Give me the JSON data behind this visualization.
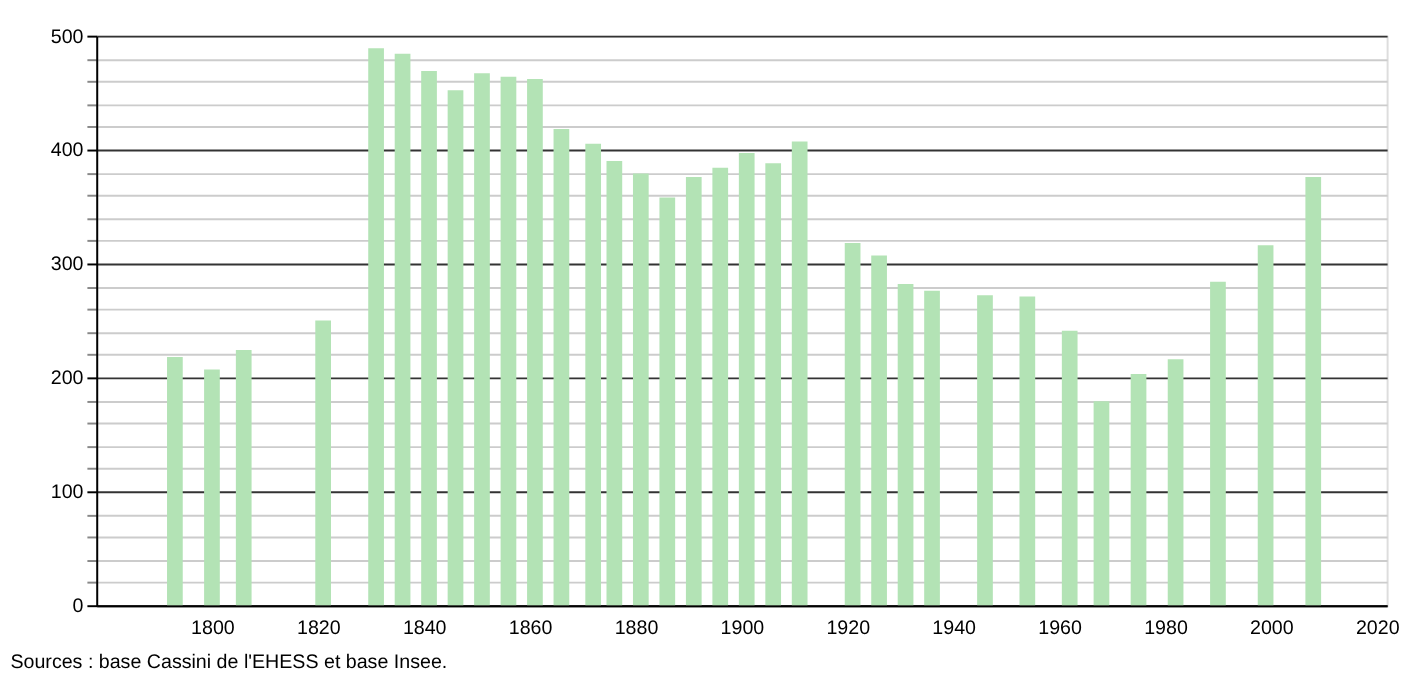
{
  "chart_data": {
    "type": "bar",
    "x": [
      1793,
      1800,
      1806,
      1821,
      1831,
      1836,
      1841,
      1846,
      1851,
      1856,
      1861,
      1866,
      1872,
      1876,
      1881,
      1886,
      1891,
      1896,
      1901,
      1906,
      1911,
      1921,
      1926,
      1931,
      1936,
      1946,
      1954,
      1962,
      1968,
      1975,
      1982,
      1990,
      1999,
      2008
    ],
    "series": [
      {
        "color": "#b3e3b5",
        "values": [
          218,
          207,
          224,
          250,
          489,
          484,
          469,
          452,
          467,
          464,
          462,
          418,
          405,
          390,
          379,
          358,
          376,
          384,
          397,
          388,
          407,
          318,
          307,
          282,
          276,
          272,
          271,
          241,
          179,
          203,
          216,
          284,
          316,
          376
        ]
      }
    ],
    "xlim": [
      1780,
      2020
    ],
    "xticks": [
      1800,
      1820,
      1840,
      1860,
      1880,
      1900,
      1920,
      1940,
      1960,
      1980,
      2000,
      2020
    ],
    "ylim": [
      0,
      500
    ],
    "yticks": [
      0,
      {
        "value": 20,
        "label": null
      },
      {
        "value": 40,
        "label": null
      },
      {
        "value": 60,
        "label": null
      },
      {
        "value": 80,
        "label": null
      },
      100,
      {
        "value": 120,
        "label": null
      },
      {
        "value": 140,
        "label": null
      },
      {
        "value": 160,
        "label": null
      },
      {
        "value": 180,
        "label": null
      },
      200,
      {
        "value": 220,
        "label": null
      },
      {
        "value": 240,
        "label": null
      },
      {
        "value": 260,
        "label": null
      },
      {
        "value": 280,
        "label": null
      },
      300,
      {
        "value": 320,
        "label": null
      },
      {
        "value": 340,
        "label": null
      },
      {
        "value": 360,
        "label": null
      },
      {
        "value": 380,
        "label": null
      },
      400,
      {
        "value": 420,
        "label": null
      },
      {
        "value": 440,
        "label": null
      },
      {
        "value": 460,
        "label": null
      },
      {
        "value": 480,
        "label": null
      },
      500
    ],
    "grid": "y",
    "annotations": [
      "Sources : base Cassini de l'EHESS et base Insee."
    ]
  }
}
